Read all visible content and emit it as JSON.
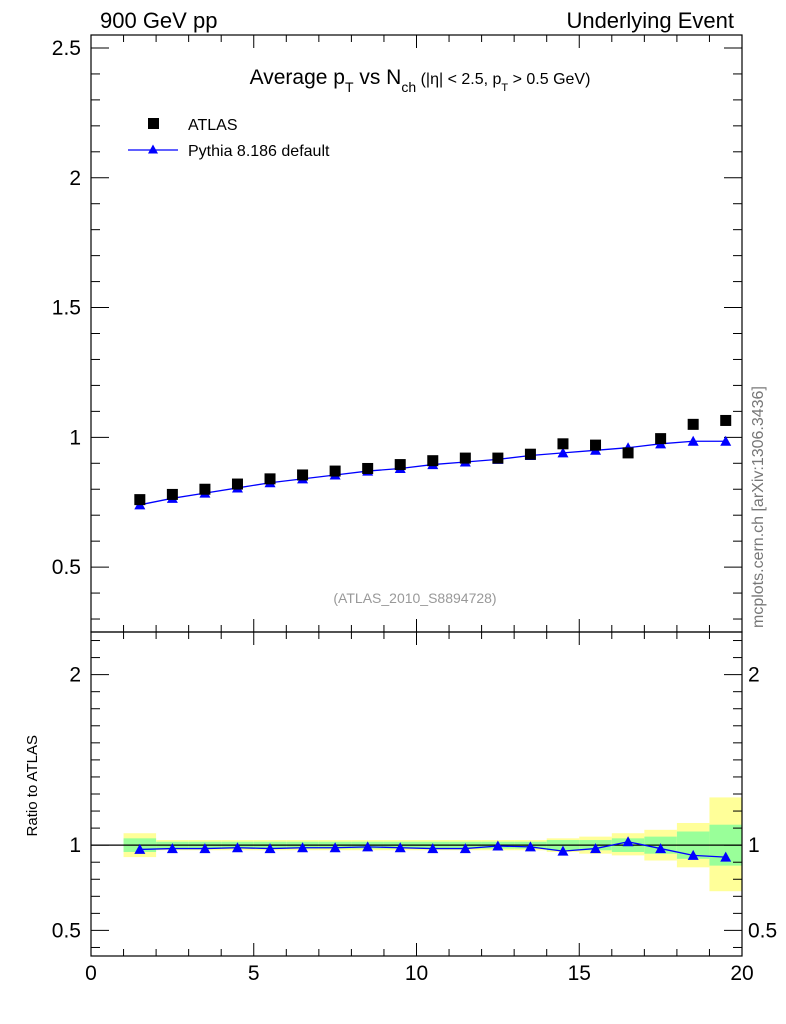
{
  "header": {
    "left": "900 GeV pp",
    "right": "Underlying Event"
  },
  "title": {
    "part1": "Average p",
    "sub1": "T",
    "part2": " vs N",
    "sub2": "ch",
    "part3": " (|η| < 2.5, p",
    "sub3": "T",
    "part4": " > 0.5 GeV)"
  },
  "watermark": "(ATLAS_2010_S8894728)",
  "side_label": "mcplots.cern.ch [arXiv:1306.3436]",
  "legend": {
    "data_label": "ATLAS",
    "mc_label": "Pythia 8.186 default"
  },
  "colors": {
    "data": "#000000",
    "mc": "#0000ff",
    "band_inner": "#99ff99",
    "band_outer": "#ffff99"
  },
  "chart_data": [
    {
      "type": "scatter",
      "panel": "main",
      "xlim": [
        0,
        20
      ],
      "ylim": [
        0.25,
        2.55
      ],
      "yticks": [
        0.5,
        1,
        1.5,
        2,
        2.5
      ],
      "yticklabels": [
        "0.5",
        "1",
        "1.5",
        "2",
        "2.5"
      ],
      "series": [
        {
          "name": "ATLAS",
          "marker": "square",
          "x": [
            1.5,
            2.5,
            3.5,
            4.5,
            5.5,
            6.5,
            7.5,
            8.5,
            9.5,
            10.5,
            11.5,
            12.5,
            13.5,
            14.5,
            15.5,
            16.5,
            17.5,
            18.5,
            19.5
          ],
          "y": [
            0.76,
            0.78,
            0.8,
            0.82,
            0.84,
            0.855,
            0.87,
            0.88,
            0.895,
            0.91,
            0.92,
            0.92,
            0.935,
            0.975,
            0.97,
            0.94,
            0.995,
            1.05,
            1.065
          ]
        },
        {
          "name": "Pythia 8.186 default",
          "marker": "triangle",
          "x": [
            1.5,
            2.5,
            3.5,
            4.5,
            5.5,
            6.5,
            7.5,
            8.5,
            9.5,
            10.5,
            11.5,
            12.5,
            13.5,
            14.5,
            15.5,
            16.5,
            17.5,
            18.5,
            19.5
          ],
          "y": [
            0.74,
            0.765,
            0.785,
            0.805,
            0.825,
            0.84,
            0.855,
            0.87,
            0.88,
            0.895,
            0.905,
            0.915,
            0.93,
            0.94,
            0.95,
            0.96,
            0.975,
            0.985,
            0.985
          ]
        }
      ]
    },
    {
      "type": "line",
      "panel": "ratio",
      "ylabel": "Ratio to ATLAS",
      "xlim": [
        0,
        20
      ],
      "ylim": [
        0.35,
        2.25
      ],
      "xticks": [
        0,
        5,
        10,
        15,
        20
      ],
      "xticklabels": [
        "0",
        "5",
        "10",
        "15",
        "20"
      ],
      "yticks": [
        0.5,
        1,
        2
      ],
      "yticklabels": [
        "0.5",
        "1",
        "2"
      ],
      "series": [
        {
          "name": "Pythia 8.186 default",
          "x": [
            1.5,
            2.5,
            3.5,
            4.5,
            5.5,
            6.5,
            7.5,
            8.5,
            9.5,
            10.5,
            11.5,
            12.5,
            13.5,
            14.5,
            15.5,
            16.5,
            17.5,
            18.5,
            19.5
          ],
          "y": [
            0.975,
            0.98,
            0.98,
            0.985,
            0.98,
            0.985,
            0.985,
            0.99,
            0.985,
            0.98,
            0.98,
            0.995,
            0.99,
            0.965,
            0.98,
            1.02,
            0.98,
            0.94,
            0.93
          ]
        }
      ],
      "bands": {
        "edges": [
          1,
          2,
          3,
          4,
          5,
          6,
          7,
          8,
          9,
          10,
          11,
          12,
          13,
          14,
          15,
          16,
          17,
          18,
          19,
          20
        ],
        "inner_lo": [
          0.96,
          0.98,
          0.98,
          0.98,
          0.98,
          0.98,
          0.98,
          0.98,
          0.98,
          0.98,
          0.98,
          0.98,
          0.98,
          0.97,
          0.97,
          0.96,
          0.95,
          0.92,
          0.88
        ],
        "inner_hi": [
          1.04,
          1.02,
          1.02,
          1.02,
          1.02,
          1.02,
          1.02,
          1.02,
          1.02,
          1.02,
          1.02,
          1.02,
          1.02,
          1.03,
          1.03,
          1.04,
          1.05,
          1.08,
          1.12
        ],
        "outer_lo": [
          0.93,
          0.97,
          0.97,
          0.97,
          0.97,
          0.97,
          0.97,
          0.97,
          0.97,
          0.97,
          0.97,
          0.97,
          0.97,
          0.96,
          0.95,
          0.94,
          0.91,
          0.87,
          0.73
        ],
        "outer_hi": [
          1.07,
          1.03,
          1.03,
          1.03,
          1.03,
          1.03,
          1.03,
          1.03,
          1.03,
          1.03,
          1.03,
          1.03,
          1.03,
          1.04,
          1.05,
          1.07,
          1.09,
          1.13,
          1.28
        ]
      }
    }
  ]
}
